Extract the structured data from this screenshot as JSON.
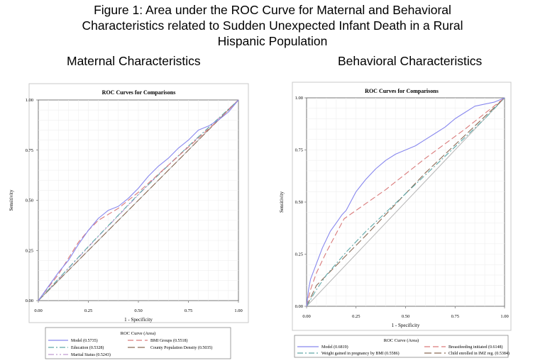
{
  "figure": {
    "title_lines": [
      "Figure 1: Area under the ROC Curve for Maternal and Behavioral",
      "Characteristics related to Sudden Unexpected Infant Death in a Rural",
      "Hispanic Population"
    ]
  },
  "panels": {
    "left_heading": "Maternal Characteristics",
    "right_heading": "Behavioral Characteristics"
  },
  "chart_data": [
    {
      "type": "line",
      "title": "ROC Curves for Comparisons",
      "xlabel": "1 - Specificity",
      "ylabel": "Sensitivity",
      "xlim": [
        0,
        1
      ],
      "ylim": [
        0,
        1
      ],
      "ticks": [
        "0.00",
        "0.25",
        "0.50",
        "0.75",
        "1.00"
      ],
      "grid": true,
      "legend_title": "ROC Curve (Area)",
      "legend_position": "bottom",
      "reference_line": true,
      "series": [
        {
          "name": "Model (0.5735)",
          "color": "#8888ee",
          "dash": "solid",
          "x": [
            0,
            0.05,
            0.1,
            0.15,
            0.2,
            0.25,
            0.3,
            0.35,
            0.4,
            0.45,
            0.5,
            0.55,
            0.6,
            0.65,
            0.7,
            0.75,
            0.8,
            0.85,
            0.9,
            0.95,
            1.0
          ],
          "y": [
            0,
            0.07,
            0.14,
            0.2,
            0.28,
            0.35,
            0.41,
            0.45,
            0.47,
            0.51,
            0.56,
            0.62,
            0.67,
            0.71,
            0.76,
            0.8,
            0.85,
            0.87,
            0.9,
            0.94,
            1.0
          ]
        },
        {
          "name": "BMI Groups (0.5518)",
          "color": "#d97a7a",
          "dash": "8,4",
          "x": [
            0,
            0.1,
            0.2,
            0.25,
            0.3,
            0.4,
            0.5,
            0.6,
            0.7,
            0.8,
            0.9,
            1.0
          ],
          "y": [
            0,
            0.13,
            0.29,
            0.35,
            0.4,
            0.46,
            0.54,
            0.63,
            0.72,
            0.81,
            0.9,
            1.0
          ]
        },
        {
          "name": "Education (0.5328)",
          "color": "#5fa8a8",
          "dash": "8,3,2,3",
          "x": [
            0,
            0.25,
            0.5,
            0.75,
            1.0
          ],
          "y": [
            0,
            0.27,
            0.53,
            0.77,
            1.0
          ]
        },
        {
          "name": "County Population Density (0.5035)",
          "color": "#8b6a55",
          "dash": "10,4",
          "x": [
            0,
            1.0
          ],
          "y": [
            0,
            1.0
          ]
        },
        {
          "name": "Marital Status (0.5243)",
          "color": "#c09ad0",
          "dash": "8,3,2,3,2,3",
          "x": [
            0,
            0.3,
            0.6,
            1.0
          ],
          "y": [
            0,
            0.32,
            0.63,
            1.0
          ]
        }
      ]
    },
    {
      "type": "line",
      "title": "ROC Curves for Comparisons",
      "xlabel": "1 - Specificity",
      "ylabel": "Sensitivity",
      "xlim": [
        0,
        1
      ],
      "ylim": [
        0,
        1
      ],
      "ticks": [
        "0.00",
        "0.25",
        "0.50",
        "0.75",
        "1.00"
      ],
      "grid": true,
      "legend_title": "ROC Curve (Area)",
      "legend_position": "bottom",
      "reference_line": true,
      "series": [
        {
          "name": "Model (0.6819)",
          "color": "#8888ee",
          "dash": "solid",
          "x": [
            0,
            0.01,
            0.02,
            0.04,
            0.06,
            0.08,
            0.1,
            0.12,
            0.15,
            0.18,
            0.2,
            0.25,
            0.3,
            0.35,
            0.4,
            0.45,
            0.5,
            0.55,
            0.6,
            0.65,
            0.7,
            0.75,
            0.8,
            0.85,
            0.9,
            0.95,
            1.0
          ],
          "y": [
            0,
            0.08,
            0.13,
            0.18,
            0.23,
            0.28,
            0.32,
            0.36,
            0.4,
            0.44,
            0.46,
            0.55,
            0.61,
            0.66,
            0.7,
            0.73,
            0.75,
            0.77,
            0.8,
            0.83,
            0.86,
            0.9,
            0.93,
            0.96,
            0.97,
            0.98,
            1.0
          ]
        },
        {
          "name": "Breastfeeding initiated (0.6148)",
          "color": "#d97a7a",
          "dash": "8,4",
          "x": [
            0,
            0.02,
            0.05,
            0.1,
            0.15,
            0.19,
            0.4,
            0.6,
            0.8,
            1.0
          ],
          "y": [
            0,
            0.08,
            0.16,
            0.26,
            0.35,
            0.42,
            0.56,
            0.71,
            0.85,
            1.0
          ]
        },
        {
          "name": "Weight gained in pregnancy by BMI (0.5586)",
          "color": "#5fa8a8",
          "dash": "8,3,2,3",
          "x": [
            0,
            0.05,
            0.1,
            0.2,
            0.3,
            0.4,
            0.5,
            0.6,
            0.7,
            0.8,
            0.9,
            1.0
          ],
          "y": [
            0,
            0.08,
            0.15,
            0.26,
            0.36,
            0.45,
            0.54,
            0.63,
            0.72,
            0.81,
            0.9,
            1.0
          ]
        },
        {
          "name": "Child enrolled in IMZ reg. (0.5384)",
          "color": "#8b6a55",
          "dash": "10,4",
          "x": [
            0,
            0.05,
            0.3,
            0.6,
            1.0
          ],
          "y": [
            0,
            0.1,
            0.34,
            0.64,
            1.0
          ]
        }
      ]
    }
  ]
}
